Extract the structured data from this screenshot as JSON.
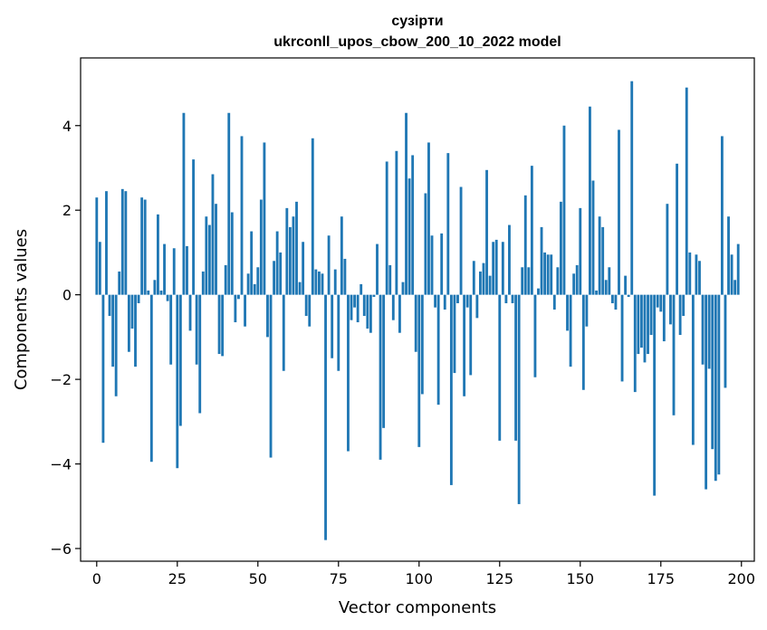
{
  "chart_data": {
    "type": "bar",
    "title": "сузірти",
    "subtitle": "ukrconll_upos_cbow_200_10_2022 model",
    "xlabel": "Vector components",
    "ylabel": "Components values",
    "xlim": [
      -5,
      204
    ],
    "ylim": [
      -6.3,
      5.6
    ],
    "x_ticks": [
      0,
      25,
      50,
      75,
      100,
      125,
      150,
      175,
      200
    ],
    "y_ticks": [
      -6,
      -4,
      -2,
      0,
      2,
      4
    ],
    "y_tick_labels": [
      "−6",
      "−4",
      "−2",
      "0",
      "2",
      "4"
    ],
    "bar_color": "#1f77b4",
    "grid": false,
    "x": [
      0,
      1,
      2,
      3,
      4,
      5,
      6,
      7,
      8,
      9,
      10,
      11,
      12,
      13,
      14,
      15,
      16,
      17,
      18,
      19,
      20,
      21,
      22,
      23,
      24,
      25,
      26,
      27,
      28,
      29,
      30,
      31,
      32,
      33,
      34,
      35,
      36,
      37,
      38,
      39,
      40,
      41,
      42,
      43,
      44,
      45,
      46,
      47,
      48,
      49,
      50,
      51,
      52,
      53,
      54,
      55,
      56,
      57,
      58,
      59,
      60,
      61,
      62,
      63,
      64,
      65,
      66,
      67,
      68,
      69,
      70,
      71,
      72,
      73,
      74,
      75,
      76,
      77,
      78,
      79,
      80,
      81,
      82,
      83,
      84,
      85,
      86,
      87,
      88,
      89,
      90,
      91,
      92,
      93,
      94,
      95,
      96,
      97,
      98,
      99,
      100,
      101,
      102,
      103,
      104,
      105,
      106,
      107,
      108,
      109,
      110,
      111,
      112,
      113,
      114,
      115,
      116,
      117,
      118,
      119,
      120,
      121,
      122,
      123,
      124,
      125,
      126,
      127,
      128,
      129,
      130,
      131,
      132,
      133,
      134,
      135,
      136,
      137,
      138,
      139,
      140,
      141,
      142,
      143,
      144,
      145,
      146,
      147,
      148,
      149,
      150,
      151,
      152,
      153,
      154,
      155,
      156,
      157,
      158,
      159,
      160,
      161,
      162,
      163,
      164,
      165,
      166,
      167,
      168,
      169,
      170,
      171,
      172,
      173,
      174,
      175,
      176,
      177,
      178,
      179,
      180,
      181,
      182,
      183,
      184,
      185,
      186,
      187,
      188,
      189,
      190,
      191,
      192,
      193,
      194,
      195,
      196,
      197,
      198,
      199
    ],
    "values": [
      2.3,
      1.25,
      -3.5,
      2.45,
      -0.5,
      -1.7,
      -2.4,
      0.55,
      2.5,
      2.45,
      -1.35,
      -0.8,
      -1.7,
      -0.2,
      2.3,
      2.25,
      0.1,
      -3.95,
      0.35,
      1.9,
      0.1,
      1.2,
      -0.15,
      -1.65,
      1.1,
      -4.1,
      -3.1,
      4.3,
      1.15,
      -0.85,
      3.2,
      -1.65,
      -2.8,
      0.55,
      1.85,
      1.65,
      2.85,
      2.15,
      -1.4,
      -1.45,
      0.7,
      4.3,
      1.95,
      -0.65,
      -0.1,
      3.75,
      -0.75,
      0.5,
      1.5,
      0.25,
      0.65,
      2.25,
      3.6,
      -1.0,
      -3.85,
      0.8,
      1.5,
      1.0,
      -1.8,
      2.05,
      1.6,
      1.85,
      2.2,
      0.3,
      1.25,
      -0.5,
      -0.75,
      3.7,
      0.6,
      0.55,
      0.5,
      -5.8,
      1.4,
      -1.5,
      0.6,
      -1.8,
      1.85,
      0.85,
      -3.7,
      -0.6,
      -0.3,
      -0.65,
      0.25,
      -0.5,
      -0.8,
      -0.9,
      -0.05,
      1.2,
      -3.9,
      -3.15,
      3.15,
      0.7,
      -0.6,
      3.4,
      -0.9,
      0.3,
      4.3,
      2.75,
      3.3,
      -1.35,
      -3.6,
      -2.35,
      2.4,
      3.6,
      1.4,
      -0.3,
      -2.6,
      1.45,
      -0.35,
      3.35,
      -4.5,
      -1.85,
      -0.2,
      2.55,
      -2.4,
      -0.3,
      -1.9,
      0.8,
      -0.55,
      0.55,
      0.75,
      2.95,
      0.45,
      1.25,
      1.3,
      -3.45,
      1.25,
      -0.2,
      1.65,
      -0.2,
      -3.45,
      -4.95,
      0.65,
      2.35,
      0.65,
      3.05,
      -1.95,
      0.15,
      1.6,
      1.0,
      0.95,
      0.95,
      -0.35,
      0.65,
      2.2,
      4.0,
      -0.85,
      -1.7,
      0.5,
      0.7,
      2.05,
      -2.25,
      -0.75,
      4.45,
      2.7,
      0.1,
      1.85,
      1.6,
      0.35,
      0.65,
      -0.2,
      -0.35,
      3.9,
      -2.05,
      0.45,
      -0.05,
      5.05,
      -2.3,
      -1.4,
      -1.25,
      -1.6,
      -1.4,
      -0.95,
      -4.75,
      -0.3,
      -0.4,
      -1.1,
      2.15,
      -0.7,
      -2.85,
      3.1,
      -0.95,
      -0.5,
      4.9,
      1.0,
      -3.55,
      0.95,
      0.8,
      -1.65,
      -4.6,
      -1.75,
      -3.65,
      -4.4,
      -4.25,
      3.75,
      -2.2,
      1.85,
      0.95,
      0.35,
      1.2
    ]
  }
}
